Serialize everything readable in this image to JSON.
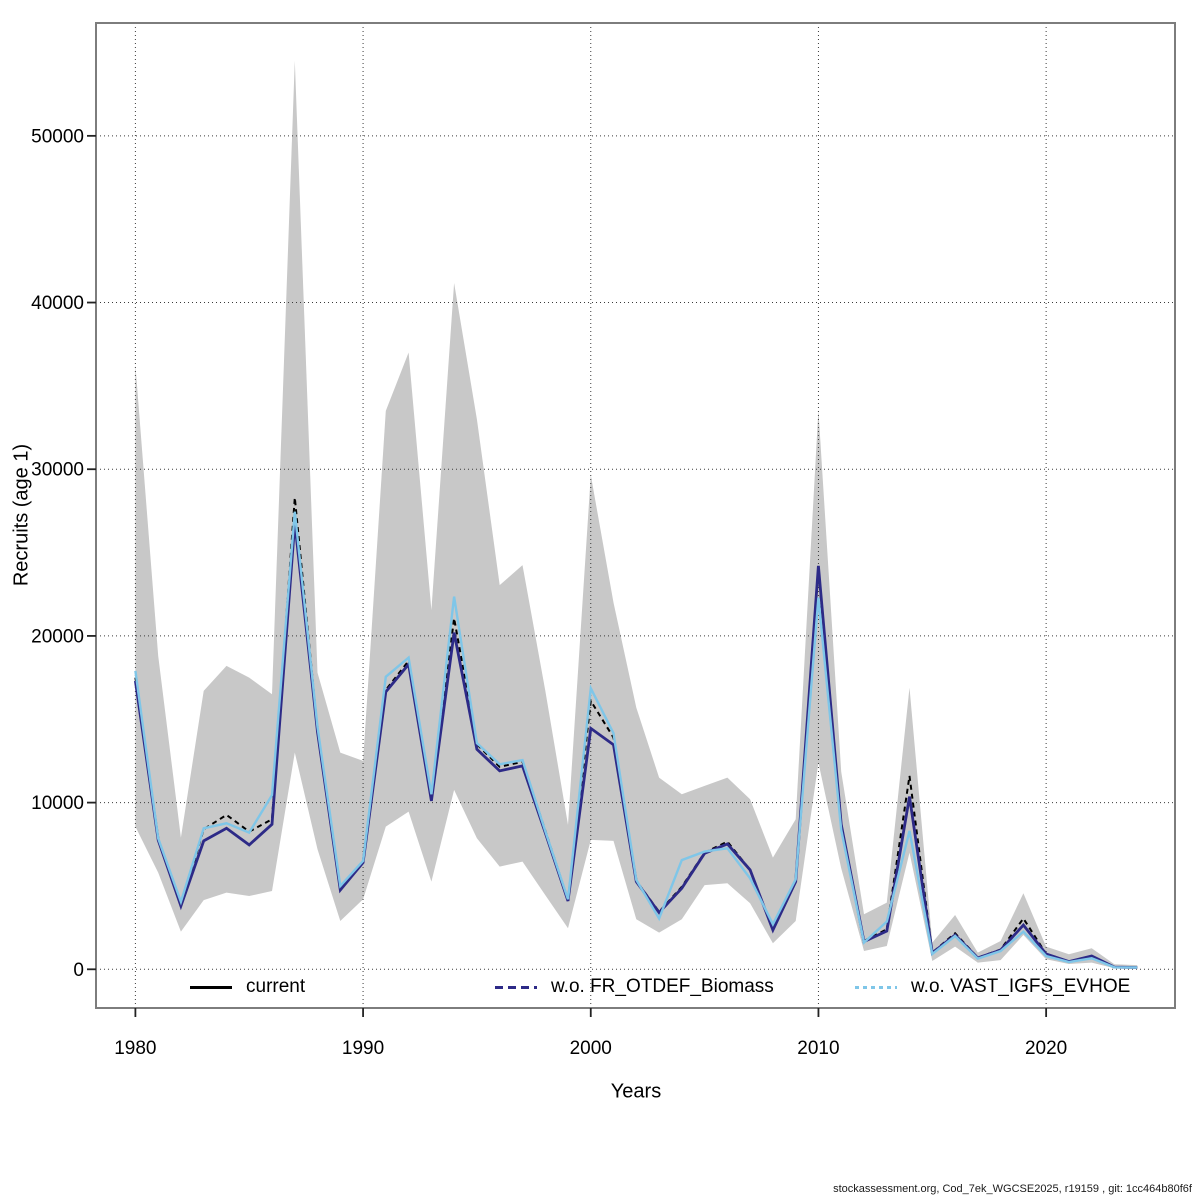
{
  "figure": {
    "ylab": "Recruits (age 1)",
    "xlab": "Years",
    "footer": "stockassessment.org, Cod_7ek_WGCSE2025, r19159 , git: 1cc464b80f6f"
  },
  "legend": [
    {
      "label": "current",
      "color": "#000000",
      "dash": null
    },
    {
      "label": "w.o. FR_OTDEF_Biomass",
      "color": "#2d2a87",
      "dash": [
        8,
        5
      ]
    },
    {
      "label": "w.o. VAST_IGFS_EVHOE",
      "color": "#7fc6e8",
      "dash": [
        4,
        4
      ]
    }
  ],
  "chart_data": {
    "type": "line",
    "title": "",
    "xlabel": "Years",
    "ylabel": "Recruits (age 1)",
    "grid": true,
    "legend_position": "bottom-inside",
    "xlim": [
      1978.27,
      2025.66
    ],
    "ylim": [
      -2322,
      56770
    ],
    "xticks": [
      1980,
      1990,
      2000,
      2010,
      2020
    ],
    "yticks": [
      0,
      10000,
      20000,
      30000,
      40000,
      50000
    ],
    "x": [
      1980,
      1981,
      1982,
      1983,
      1984,
      1985,
      1986,
      1987,
      1988,
      1989,
      1990,
      1991,
      1992,
      1993,
      1994,
      1995,
      1996,
      1997,
      1998,
      1999,
      2000,
      2001,
      2002,
      2003,
      2004,
      2005,
      2006,
      2007,
      2008,
      2009,
      2010,
      2011,
      2012,
      2013,
      2014,
      2015,
      2016,
      2017,
      2018,
      2019,
      2020,
      2021,
      2022,
      2023,
      2024
    ],
    "series": [
      {
        "name": "current",
        "color": "#000000",
        "style": "dashed",
        "values": [
          17500,
          7800,
          3800,
          8400,
          9260,
          8260,
          9000,
          28300,
          14400,
          4800,
          6460,
          16760,
          18500,
          10200,
          21060,
          13500,
          12150,
          12450,
          8340,
          4160,
          16100,
          13900,
          5300,
          3450,
          4950,
          7000,
          7660,
          5960,
          2400,
          5300,
          23900,
          8700,
          1700,
          2400,
          11600,
          1000,
          2160,
          700,
          1180,
          3050,
          930,
          470,
          800,
          130,
          110
        ]
      },
      {
        "name": "w.o. FR_OTDEF_Biomass",
        "color": "#2d2a87",
        "style": "solid",
        "values": [
          17300,
          7750,
          3800,
          7700,
          8460,
          7460,
          8700,
          26800,
          14250,
          4760,
          6400,
          16650,
          18300,
          10100,
          20200,
          13200,
          11900,
          12200,
          8200,
          4100,
          14450,
          13470,
          5260,
          3400,
          4860,
          6960,
          7520,
          5960,
          2360,
          5260,
          24200,
          8700,
          1660,
          2300,
          10360,
          980,
          2060,
          680,
          1150,
          2660,
          920,
          460,
          800,
          130,
          110
        ]
      },
      {
        "name": "w.o. VAST_IGFS_EVHOE",
        "color": "#7fc6e8",
        "style": "solid",
        "values": [
          17900,
          7860,
          4050,
          8460,
          8760,
          8200,
          10450,
          27450,
          14550,
          5000,
          6500,
          17550,
          18700,
          10500,
          22360,
          13570,
          12300,
          12550,
          8300,
          4200,
          16860,
          14160,
          5360,
          3050,
          6550,
          7060,
          7260,
          5460,
          2700,
          5400,
          22300,
          8360,
          1610,
          2860,
          8300,
          920,
          2000,
          640,
          1100,
          2260,
          800,
          440,
          660,
          120,
          110
        ]
      }
    ],
    "band": {
      "name": "confidence-band",
      "color": "#c8c8c8",
      "low": [
        8560,
        5800,
        2260,
        4150,
        4600,
        4400,
        4700,
        13000,
        7200,
        2900,
        4200,
        8560,
        9460,
        5260,
        10760,
        7860,
        6160,
        6460,
        4460,
        2460,
        7760,
        7700,
        3000,
        2200,
        3000,
        5050,
        5160,
        3960,
        1560,
        2900,
        12400,
        6060,
        1100,
        1400,
        7000,
        500,
        1360,
        400,
        550,
        2060,
        600,
        320,
        400,
        60,
        50
      ],
      "high": [
        36250,
        18800,
        7900,
        16700,
        18200,
        17500,
        16500,
        54500,
        17800,
        13000,
        12500,
        33500,
        37000,
        21550,
        41170,
        33000,
        23050,
        24250,
        16750,
        8660,
        29650,
        22000,
        15700,
        11500,
        10500,
        11000,
        11500,
        10200,
        6700,
        9000,
        33550,
        11860,
        3300,
        4000,
        16900,
        1600,
        3260,
        1000,
        1700,
        4560,
        1360,
        900,
        1260,
        300,
        250
      ]
    }
  }
}
